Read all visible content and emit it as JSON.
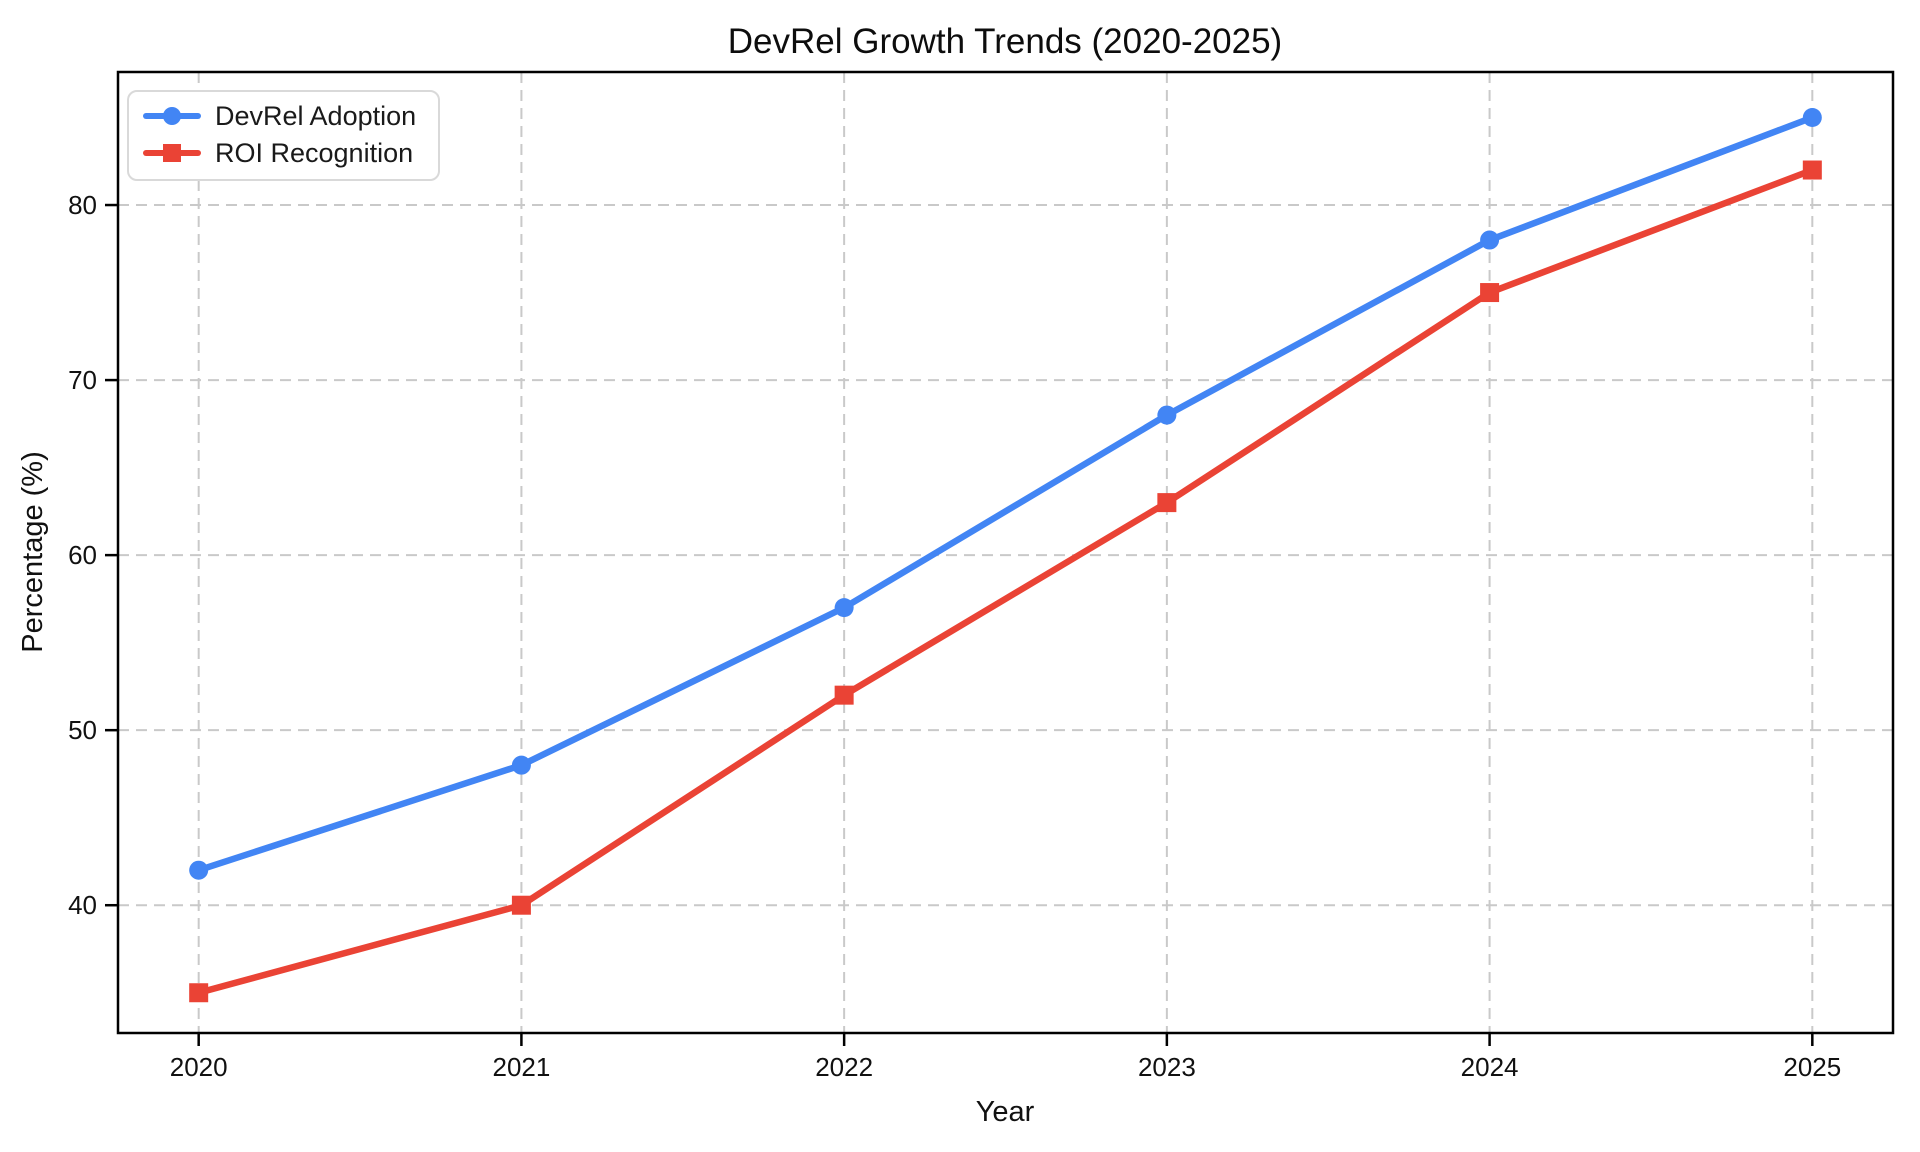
{
  "chart_data": {
    "type": "line",
    "title": "DevRel Growth Trends (2020-2025)",
    "xlabel": "Year",
    "ylabel": "Percentage (%)",
    "x": [
      2020,
      2021,
      2022,
      2023,
      2024,
      2025
    ],
    "x_tick_labels": [
      "2020",
      "2021",
      "2022",
      "2023",
      "2024",
      "2025"
    ],
    "y_ticks": [
      40,
      50,
      60,
      70,
      80
    ],
    "y_tick_labels": [
      "40",
      "50",
      "60",
      "70",
      "80"
    ],
    "xlim": [
      2019.75,
      2025.25
    ],
    "ylim": [
      32.7,
      87.6
    ],
    "grid": true,
    "grid_style": "dashed",
    "grid_color": "#c9c9c9",
    "background_color": "#ffffff",
    "legend_position": "upper-left",
    "series": [
      {
        "name": "DevRel Adoption",
        "color": "#4285F4",
        "marker": "circle",
        "values": [
          42,
          48,
          57,
          68,
          78,
          85
        ]
      },
      {
        "name": "ROI Recognition",
        "color": "#EA4335",
        "marker": "square",
        "values": [
          35,
          40,
          52,
          63,
          75,
          82
        ]
      }
    ]
  }
}
